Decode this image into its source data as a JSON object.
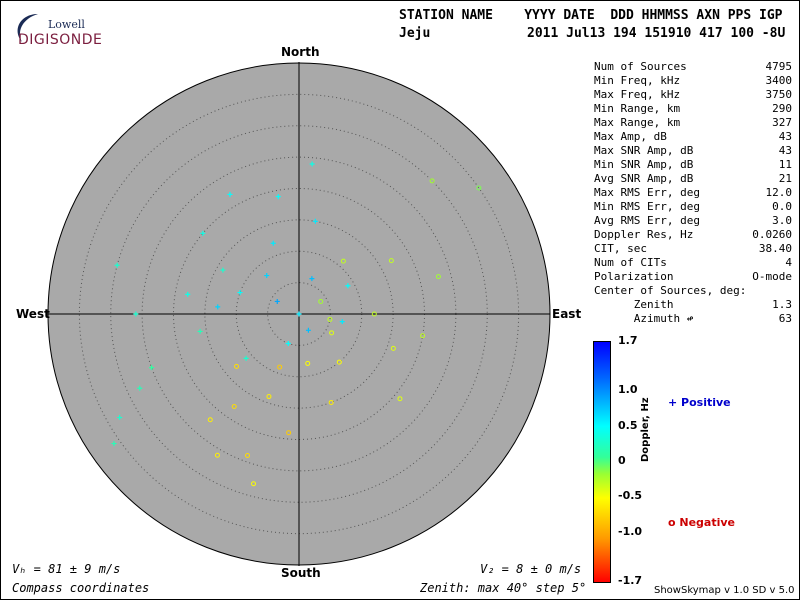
{
  "logo": {
    "line1": "Lowell",
    "line2": "DIGISONDE"
  },
  "header": {
    "col_labels": "STATION NAME    YYYY DATE  DDD HHMMSS AXN PPS IGP",
    "station": "Jeju",
    "values": "2011 Jul13 194 151910 417 100 -8U"
  },
  "info": [
    {
      "label": "Num of Sources",
      "value": "4795"
    },
    {
      "label": "Min Freq, kHz",
      "value": "3400"
    },
    {
      "label": "Max Freq, kHz",
      "value": "3750"
    },
    {
      "label": "Min Range, km",
      "value": "290"
    },
    {
      "label": "Max Range, km",
      "value": "327"
    },
    {
      "label": "Max Amp, dB",
      "value": "43"
    },
    {
      "label": "Max SNR Amp, dB",
      "value": "43"
    },
    {
      "label": "Min SNR Amp, dB",
      "value": "11"
    },
    {
      "label": "Avg SNR Amp, dB",
      "value": "21"
    },
    {
      "label": "Max RMS Err, deg",
      "value": "12.0"
    },
    {
      "label": "Min RMS Err, deg",
      "value": "0.0"
    },
    {
      "label": "Avg RMS Err, deg",
      "value": "3.0"
    },
    {
      "label": "Doppler Res, Hz",
      "value": "0.0260"
    },
    {
      "label": "CIT, sec",
      "value": "38.40"
    },
    {
      "label": "Num of CITs",
      "value": "4"
    },
    {
      "label": "Polarization",
      "value": "O-mode"
    },
    {
      "label": "Center of Sources, deg:",
      "value": ""
    },
    {
      "label": "      Zenith",
      "value": "1.3"
    },
    {
      "label": "      Azimuth ↫",
      "value": "63"
    }
  ],
  "compass": {
    "north": "North",
    "south": "South",
    "east": "East",
    "west": "West"
  },
  "footer": {
    "vh": "Vₕ = 81 ± 9 m/s",
    "vz": "V₂ = 8 ± 0 m/s",
    "coords": "Compass coordinates",
    "zenith": "Zenith: max 40°  step 5°",
    "version": "ShowSkymap v 1.0   SD v 5.0"
  },
  "colorbar": {
    "label": "Doppler, Hz",
    "ticks": [
      "1.7",
      "1.0",
      "0.5",
      "0",
      "-0.5",
      "-1.0",
      "-1.7"
    ],
    "positive_label": "+ Positive",
    "negative_label": "o Negative",
    "positive_color": "#0000cc",
    "negative_color": "#cc0000"
  },
  "chart_data": {
    "type": "scatter",
    "title": "",
    "projection": "polar skymap",
    "radial_max_deg": 40,
    "radial_step_deg": 5,
    "plot_background": "#a9a9a9",
    "markers": {
      "positive": "+",
      "negative": "o"
    },
    "source_cloud": {
      "count": 4795,
      "center_zenith_deg": 1.3,
      "center_azimuth_deg": 63
    },
    "series": [
      {
        "name": "Positive",
        "points": [
          {
            "zen": 0,
            "az": 0,
            "dop": 0.6
          },
          {
            "zen": 4,
            "az": 300,
            "dop": 0.9
          },
          {
            "zen": 8,
            "az": 320,
            "dop": 0.7
          },
          {
            "zen": 10,
            "az": 290,
            "dop": 0.5
          },
          {
            "zen": 14,
            "az": 300,
            "dop": 0.3
          },
          {
            "zen": 18,
            "az": 280,
            "dop": 0.4
          },
          {
            "zen": 6,
            "az": 20,
            "dop": 0.8
          },
          {
            "zen": 12,
            "az": 340,
            "dop": 0.6
          },
          {
            "zen": 20,
            "az": 310,
            "dop": 0.4
          },
          {
            "zen": 16,
            "az": 260,
            "dop": 0.2
          },
          {
            "zen": 9,
            "az": 60,
            "dop": 0.5
          },
          {
            "zen": 22,
            "az": 330,
            "dop": 0.5
          },
          {
            "zen": 28,
            "az": 245,
            "dop": 0.2
          },
          {
            "zen": 33,
            "az": 240,
            "dop": 0.3
          },
          {
            "zen": 36,
            "az": 235,
            "dop": 0.2
          },
          {
            "zen": 25,
            "az": 250,
            "dop": 0.1
          },
          {
            "zen": 15,
            "az": 10,
            "dop": 0.6
          },
          {
            "zen": 24,
            "az": 5,
            "dop": 0.4
          },
          {
            "zen": 5,
            "az": 200,
            "dop": 0.5
          },
          {
            "zen": 11,
            "az": 230,
            "dop": 0.3
          },
          {
            "zen": 7,
            "az": 100,
            "dop": 0.6
          },
          {
            "zen": 19,
            "az": 350,
            "dop": 0.5
          },
          {
            "zen": 26,
            "az": 270,
            "dop": 0.3
          },
          {
            "zen": 30,
            "az": 285,
            "dop": 0.3
          },
          {
            "zen": 13,
            "az": 275,
            "dop": 0.7
          },
          {
            "zen": 3,
            "az": 150,
            "dop": 0.8
          }
        ]
      },
      {
        "name": "Negative",
        "points": [
          {
            "zen": 6,
            "az": 120,
            "dop": -0.4
          },
          {
            "zen": 10,
            "az": 140,
            "dop": -0.5
          },
          {
            "zen": 14,
            "az": 200,
            "dop": -0.6
          },
          {
            "zen": 18,
            "az": 215,
            "dop": -0.7
          },
          {
            "zen": 22,
            "az": 220,
            "dop": -0.6
          },
          {
            "zen": 12,
            "az": 90,
            "dop": -0.3
          },
          {
            "zen": 16,
            "az": 110,
            "dop": -0.4
          },
          {
            "zen": 20,
            "az": 100,
            "dop": -0.3
          },
          {
            "zen": 8,
            "az": 170,
            "dop": -0.5
          },
          {
            "zen": 24,
            "az": 200,
            "dop": -0.7
          },
          {
            "zen": 26,
            "az": 210,
            "dop": -0.6
          },
          {
            "zen": 4,
            "az": 60,
            "dop": -0.2
          },
          {
            "zen": 11,
            "az": 40,
            "dop": -0.3
          },
          {
            "zen": 17,
            "az": 60,
            "dop": -0.3
          },
          {
            "zen": 28,
            "az": 195,
            "dop": -0.5
          },
          {
            "zen": 15,
            "az": 160,
            "dop": -0.6
          },
          {
            "zen": 9,
            "az": 200,
            "dop": -0.8
          },
          {
            "zen": 30,
            "az": 45,
            "dop": -0.2
          },
          {
            "zen": 35,
            "az": 55,
            "dop": -0.1
          },
          {
            "zen": 21,
            "az": 130,
            "dop": -0.4
          },
          {
            "zen": 13,
            "az": 230,
            "dop": -0.7
          },
          {
            "zen": 19,
            "az": 185,
            "dop": -0.8
          },
          {
            "zen": 5,
            "az": 100,
            "dop": -0.3
          },
          {
            "zen": 23,
            "az": 75,
            "dop": -0.2
          }
        ]
      }
    ]
  }
}
